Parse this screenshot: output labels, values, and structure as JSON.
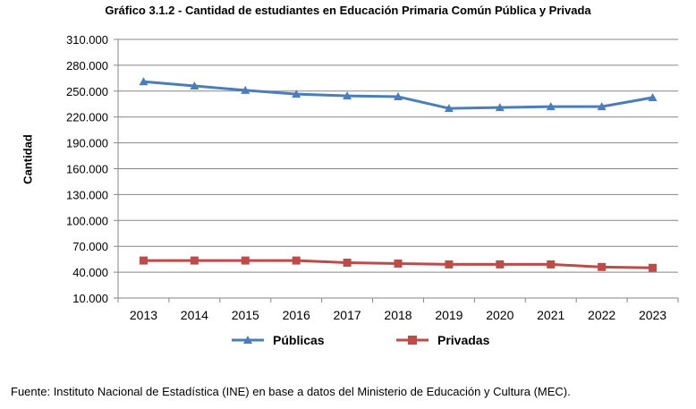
{
  "title": "Gráfico 3.1.2 - Cantidad de estudiantes en Educación Primaria Común Pública y Privada",
  "source": "Fuente: Instituto Nacional de Estadística (INE) en base a datos del Ministerio de Educación y Cultura (MEC).",
  "chart_data": {
    "type": "line",
    "title": "Gráfico 3.1.2 - Cantidad de estudiantes en Educación Primaria Común Pública y Privada",
    "xlabel": "",
    "ylabel": "Cantidad",
    "categories": [
      "2013",
      "2014",
      "2015",
      "2016",
      "2017",
      "2018",
      "2019",
      "2020",
      "2021",
      "2022",
      "2023"
    ],
    "ylim": [
      10000,
      310000
    ],
    "yticks": [
      10000,
      40000,
      70000,
      100000,
      130000,
      160000,
      190000,
      220000,
      250000,
      280000,
      310000
    ],
    "ytick_labels": [
      "10.000",
      "40.000",
      "70.000",
      "100.000",
      "130.000",
      "160.000",
      "190.000",
      "220.000",
      "250.000",
      "280.000",
      "310.000"
    ],
    "grid": true,
    "legend_position": "bottom",
    "series": [
      {
        "name": "Públicas",
        "color": "#4a7ebb",
        "marker": "triangle",
        "values": [
          261000,
          256000,
          251000,
          246500,
          244500,
          243500,
          230000,
          231000,
          232000,
          232000,
          242500
        ]
      },
      {
        "name": "Privadas",
        "color": "#be4b48",
        "marker": "square",
        "values": [
          53500,
          53500,
          53500,
          53500,
          51000,
          50000,
          49000,
          49000,
          49000,
          46000,
          45000
        ]
      }
    ]
  }
}
